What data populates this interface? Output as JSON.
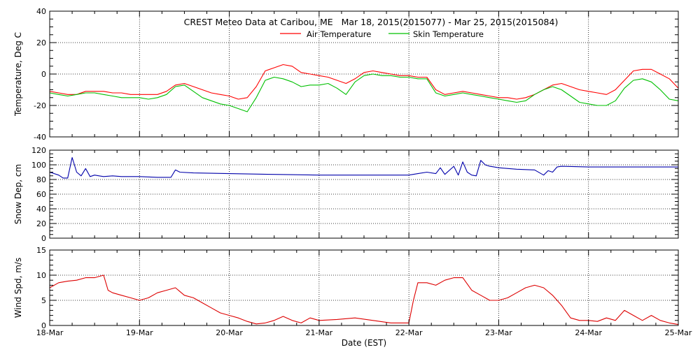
{
  "title": "CREST Meteo Data at Caribou, ME   Mar 18, 2015(2015077) - Mar 25, 2015(2015084)",
  "x_axis": {
    "label": "Date (EST)",
    "tick_labels": [
      "18-Mar",
      "19-Mar",
      "20-Mar",
      "21-Mar",
      "22-Mar",
      "23-Mar",
      "24-Mar",
      "25-Mar"
    ]
  },
  "colors": {
    "air": "#ff0000",
    "skin": "#00c000",
    "snow": "#0000aa",
    "wind": "#dd0000",
    "axis": "#000000"
  },
  "chart_data": [
    {
      "type": "line",
      "ylabel": "Temperature, Deg C",
      "ylim": [
        -40,
        40
      ],
      "yticks": [
        -40,
        -20,
        0,
        20,
        40
      ],
      "xlim": [
        0,
        7
      ],
      "grid": true,
      "legend": "top-center",
      "series": [
        {
          "name": "Air Temperature",
          "color": "#ff0000",
          "x": [
            0,
            0.1,
            0.2,
            0.3,
            0.4,
            0.5,
            0.6,
            0.7,
            0.8,
            0.9,
            1.0,
            1.1,
            1.2,
            1.3,
            1.4,
            1.5,
            1.6,
            1.7,
            1.8,
            1.9,
            2.0,
            2.1,
            2.2,
            2.3,
            2.4,
            2.5,
            2.6,
            2.7,
            2.8,
            2.9,
            3.0,
            3.1,
            3.2,
            3.3,
            3.4,
            3.5,
            3.6,
            3.7,
            3.8,
            3.9,
            4.0,
            4.1,
            4.2,
            4.3,
            4.4,
            4.5,
            4.6,
            4.7,
            4.8,
            4.9,
            5.0,
            5.1,
            5.2,
            5.3,
            5.4,
            5.5,
            5.6,
            5.7,
            5.8,
            5.9,
            6.0,
            6.1,
            6.2,
            6.3,
            6.4,
            6.5,
            6.6,
            6.7,
            6.8,
            6.9,
            7.0
          ],
          "y": [
            -11,
            -12,
            -13,
            -13,
            -11,
            -11,
            -11,
            -12,
            -12,
            -13,
            -13,
            -13,
            -13,
            -11,
            -7,
            -6,
            -8,
            -10,
            -12,
            -13,
            -14,
            -16,
            -15,
            -8,
            2,
            4,
            6,
            5,
            1,
            0,
            -1,
            -2,
            -4,
            -6,
            -3,
            1,
            2,
            1,
            0,
            -1,
            -1,
            -2,
            -2,
            -10,
            -13,
            -12,
            -11,
            -12,
            -13,
            -14,
            -15,
            -15,
            -16,
            -15,
            -13,
            -10,
            -7,
            -6,
            -8,
            -10,
            -11,
            -12,
            -13,
            -10,
            -4,
            2,
            3,
            3,
            0,
            -3,
            -9
          ]
        },
        {
          "name": "Skin Temperature",
          "color": "#00c000",
          "x": [
            0,
            0.1,
            0.2,
            0.3,
            0.4,
            0.5,
            0.6,
            0.7,
            0.8,
            0.9,
            1.0,
            1.1,
            1.2,
            1.3,
            1.4,
            1.5,
            1.6,
            1.7,
            1.8,
            1.9,
            2.0,
            2.1,
            2.2,
            2.3,
            2.4,
            2.5,
            2.6,
            2.7,
            2.8,
            2.9,
            3.0,
            3.1,
            3.2,
            3.3,
            3.4,
            3.5,
            3.6,
            3.7,
            3.8,
            3.9,
            4.0,
            4.1,
            4.2,
            4.3,
            4.4,
            4.5,
            4.6,
            4.7,
            4.8,
            4.9,
            5.0,
            5.1,
            5.2,
            5.3,
            5.4,
            5.5,
            5.6,
            5.7,
            5.8,
            5.9,
            6.0,
            6.1,
            6.2,
            6.3,
            6.4,
            6.5,
            6.6,
            6.7,
            6.8,
            6.9,
            7.0
          ],
          "y": [
            -12,
            -13,
            -14,
            -13,
            -12,
            -12,
            -13,
            -14,
            -15,
            -15,
            -15,
            -16,
            -15,
            -13,
            -8,
            -7,
            -11,
            -15,
            -17,
            -19,
            -20,
            -22,
            -24,
            -15,
            -4,
            -2,
            -3,
            -5,
            -8,
            -7,
            -7,
            -6,
            -9,
            -13,
            -5,
            -1,
            0,
            -1,
            -1,
            -2,
            -2,
            -3,
            -3,
            -12,
            -14,
            -13,
            -12,
            -13,
            -14,
            -15,
            -16,
            -17,
            -18,
            -17,
            -13,
            -10,
            -8,
            -10,
            -14,
            -18,
            -19,
            -20,
            -20,
            -17,
            -9,
            -4,
            -3,
            -5,
            -10,
            -16,
            -17
          ]
        }
      ]
    },
    {
      "type": "line",
      "ylabel": "Snow Dep, cm",
      "ylim": [
        0,
        120
      ],
      "yticks": [
        0,
        20,
        40,
        60,
        80,
        100,
        120
      ],
      "xlim": [
        0,
        7
      ],
      "grid": true,
      "series": [
        {
          "color": "#0000aa",
          "x": [
            0,
            0.1,
            0.15,
            0.2,
            0.25,
            0.3,
            0.35,
            0.4,
            0.45,
            0.5,
            0.55,
            0.6,
            0.7,
            0.8,
            1.0,
            1.2,
            1.35,
            1.4,
            1.45,
            1.6,
            2.0,
            2.5,
            3.0,
            3.5,
            4.0,
            4.1,
            4.2,
            4.3,
            4.35,
            4.4,
            4.5,
            4.55,
            4.6,
            4.65,
            4.7,
            4.75,
            4.8,
            4.85,
            4.9,
            4.95,
            5.0,
            5.2,
            5.4,
            5.5,
            5.55,
            5.6,
            5.65,
            5.7,
            6.0,
            6.5,
            7.0
          ],
          "y": [
            90,
            86,
            82,
            82,
            110,
            90,
            85,
            95,
            84,
            86,
            85,
            84,
            85,
            84,
            84,
            83,
            83,
            93,
            90,
            89,
            88,
            87,
            86,
            86,
            86,
            88,
            90,
            88,
            96,
            87,
            98,
            86,
            104,
            90,
            86,
            85,
            106,
            100,
            98,
            97,
            96,
            94,
            93,
            86,
            92,
            90,
            97,
            98,
            97,
            97,
            97
          ]
        }
      ]
    },
    {
      "type": "line",
      "ylabel": "Wind Spd, m/s",
      "ylim": [
        0,
        15
      ],
      "yticks": [
        0,
        5,
        10,
        15
      ],
      "xlim": [
        0,
        7
      ],
      "grid": true,
      "series": [
        {
          "color": "#dd0000",
          "x": [
            0,
            0.1,
            0.2,
            0.3,
            0.4,
            0.5,
            0.6,
            0.65,
            0.7,
            0.8,
            0.9,
            1.0,
            1.1,
            1.2,
            1.3,
            1.4,
            1.5,
            1.6,
            1.7,
            1.8,
            1.9,
            2.0,
            2.1,
            2.2,
            2.3,
            2.4,
            2.5,
            2.6,
            2.7,
            2.8,
            2.9,
            3.0,
            3.2,
            3.4,
            3.6,
            3.8,
            4.0,
            4.05,
            4.1,
            4.2,
            4.3,
            4.4,
            4.5,
            4.6,
            4.7,
            4.8,
            4.9,
            5.0,
            5.1,
            5.2,
            5.3,
            5.4,
            5.5,
            5.6,
            5.7,
            5.8,
            5.9,
            6.0,
            6.1,
            6.2,
            6.3,
            6.4,
            6.5,
            6.6,
            6.7,
            6.8,
            6.9,
            7.0
          ],
          "y": [
            7.5,
            8.5,
            8.8,
            9.0,
            9.5,
            9.5,
            10.0,
            7.0,
            6.5,
            6.0,
            5.5,
            5.0,
            5.5,
            6.5,
            7.0,
            7.5,
            6.0,
            5.5,
            4.5,
            3.5,
            2.5,
            2.0,
            1.5,
            0.8,
            0.3,
            0.5,
            1.0,
            1.8,
            1.0,
            0.5,
            1.5,
            1.0,
            1.2,
            1.5,
            1.0,
            0.5,
            0.5,
            5.0,
            8.5,
            8.5,
            8.0,
            9.0,
            9.5,
            9.5,
            7.0,
            6.0,
            5.0,
            5.0,
            5.5,
            6.5,
            7.5,
            8.0,
            7.5,
            6.0,
            4.0,
            1.5,
            1.0,
            1.0,
            0.8,
            1.5,
            1.0,
            3.0,
            2.0,
            1.0,
            2.0,
            1.0,
            0.5,
            0.2
          ]
        }
      ]
    }
  ]
}
